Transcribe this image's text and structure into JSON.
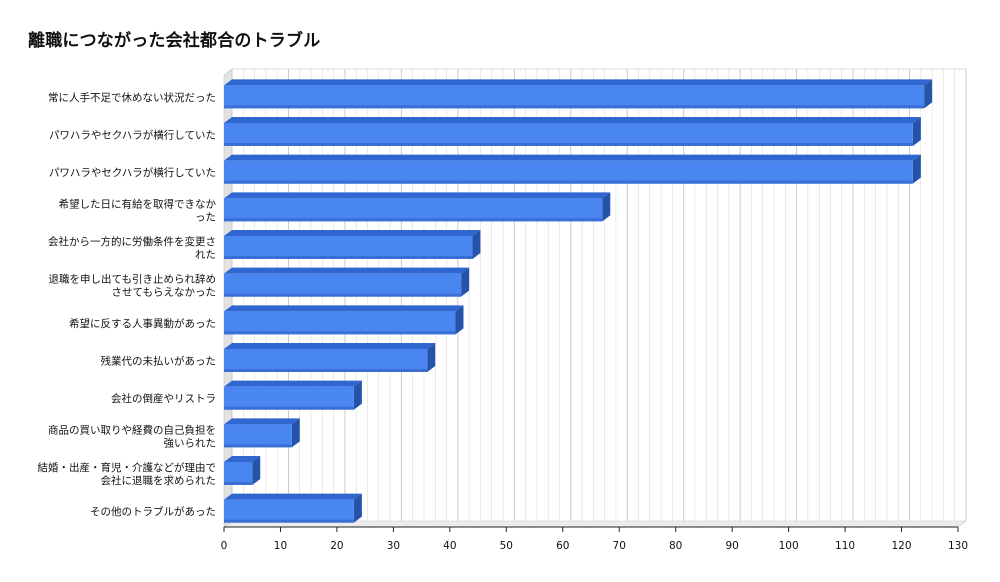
{
  "chart_data": {
    "type": "bar",
    "orientation": "horizontal",
    "title": "離職につながった会社都合のトラブル",
    "categories": [
      "常に人手不足で休めない状況だった",
      "パワハラやセクハラが横行していた",
      "パワハラやセクハラが横行していた",
      "希望した日に有給を取得できなかった",
      "会社から一方的に労働条件を変更された",
      "退職を申し出ても引き止められ辞めさせてもらえなかった",
      "希望に反する人事異動があった",
      "残業代の未払いがあった",
      "会社の倒産やリストラ",
      "商品の買い取りや経費の自己負担を強いられた",
      "結婚・出産・育児・介護などが理由で会社に退職を求められた",
      "その他のトラブルがあった"
    ],
    "category_lines": [
      [
        "常に人手不足で休めない状況だった"
      ],
      [
        "パワハラやセクハラが横行していた"
      ],
      [
        "パワハラやセクハラが横行していた"
      ],
      [
        "希望した日に有給を取得できなか",
        "った"
      ],
      [
        "会社から一方的に労働条件を変更さ",
        "れた"
      ],
      [
        "退職を申し出ても引き止められ辞め",
        "させてもらえなかった"
      ],
      [
        "希望に反する人事異動があった"
      ],
      [
        "残業代の未払いがあった"
      ],
      [
        "会社の倒産やリストラ"
      ],
      [
        "商品の買い取りや経費の自己負担を",
        "強いられた"
      ],
      [
        "結婚・出産・育児・介護などが理由で",
        "会社に退職を求められた"
      ],
      [
        "その他のトラブルがあった"
      ]
    ],
    "values": [
      124,
      122,
      122,
      67,
      44,
      42,
      41,
      36,
      23,
      12,
      5,
      23
    ],
    "xlim": [
      0,
      130
    ],
    "xticks": [
      0,
      10,
      20,
      30,
      40,
      50,
      60,
      70,
      80,
      90,
      100,
      110,
      120,
      130
    ],
    "grid": true,
    "legend": "none",
    "colors": {
      "bar_front": "#4a86f0",
      "bar_top": "#2f66cf",
      "bar_side": "#2553aa",
      "grid": "#d6d6d6",
      "wall": "#e2e2e2",
      "axis": "#222222"
    }
  }
}
